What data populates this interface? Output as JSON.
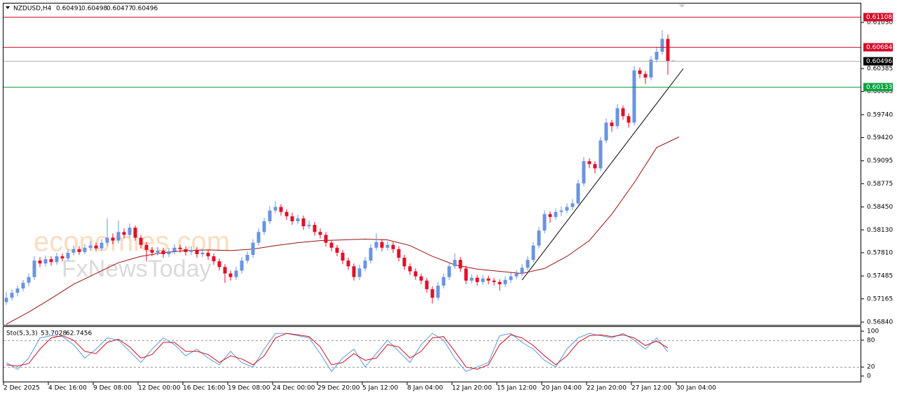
{
  "chart_data": {
    "type": "candlestick",
    "symbol": "NZDUSD,H4",
    "colors": {
      "up": "#6a94e0",
      "down": "#e01028"
    },
    "ohlc": [
      [
        0.5712,
        0.5726,
        0.5708,
        0.5718
      ],
      [
        0.5718,
        0.573,
        0.5714,
        0.5725
      ],
      [
        0.5725,
        0.5735,
        0.572,
        0.5731
      ],
      [
        0.5731,
        0.5743,
        0.5727,
        0.5739
      ],
      [
        0.5739,
        0.5752,
        0.5734,
        0.5747
      ],
      [
        0.5747,
        0.5776,
        0.5743,
        0.577
      ],
      [
        0.577,
        0.5775,
        0.5761,
        0.5766
      ],
      [
        0.5766,
        0.5777,
        0.5762,
        0.5772
      ],
      [
        0.5772,
        0.5776,
        0.5763,
        0.5768
      ],
      [
        0.5768,
        0.5781,
        0.5764,
        0.5776
      ],
      [
        0.5776,
        0.578,
        0.5769,
        0.5773
      ],
      [
        0.5773,
        0.5786,
        0.577,
        0.5781
      ],
      [
        0.5781,
        0.5791,
        0.5777,
        0.5786
      ],
      [
        0.5786,
        0.579,
        0.5778,
        0.5782
      ],
      [
        0.5782,
        0.5793,
        0.5779,
        0.5788
      ],
      [
        0.5788,
        0.5797,
        0.5784,
        0.5791
      ],
      [
        0.5791,
        0.5795,
        0.5783,
        0.5787
      ],
      [
        0.5787,
        0.58,
        0.5784,
        0.5795
      ],
      [
        0.5795,
        0.5829,
        0.5791,
        0.5802
      ],
      [
        0.5802,
        0.5808,
        0.5793,
        0.5798
      ],
      [
        0.5798,
        0.5826,
        0.5794,
        0.581
      ],
      [
        0.581,
        0.5815,
        0.5801,
        0.5806
      ],
      [
        0.5806,
        0.5822,
        0.5802,
        0.5816
      ],
      [
        0.5816,
        0.5819,
        0.5798,
        0.5802
      ],
      [
        0.5802,
        0.5806,
        0.5787,
        0.5792
      ],
      [
        0.5792,
        0.5796,
        0.5769,
        0.5785
      ],
      [
        0.5785,
        0.5789,
        0.5776,
        0.5781
      ],
      [
        0.5781,
        0.5789,
        0.5777,
        0.5784
      ],
      [
        0.5784,
        0.5788,
        0.5774,
        0.5779
      ],
      [
        0.5779,
        0.5788,
        0.5775,
        0.5783
      ],
      [
        0.5783,
        0.5793,
        0.5779,
        0.5788
      ],
      [
        0.5788,
        0.5792,
        0.5781,
        0.5786
      ],
      [
        0.5786,
        0.579,
        0.5777,
        0.5782
      ],
      [
        0.5782,
        0.579,
        0.5778,
        0.5785
      ],
      [
        0.5785,
        0.5789,
        0.5774,
        0.5779
      ],
      [
        0.5779,
        0.5786,
        0.5775,
        0.5781
      ],
      [
        0.5781,
        0.5785,
        0.5771,
        0.5776
      ],
      [
        0.5776,
        0.578,
        0.5764,
        0.5769
      ],
      [
        0.5769,
        0.5773,
        0.5756,
        0.5761
      ],
      [
        0.5761,
        0.5765,
        0.5739,
        0.5752
      ],
      [
        0.5752,
        0.5756,
        0.5742,
        0.5747
      ],
      [
        0.5747,
        0.5761,
        0.5743,
        0.5756
      ],
      [
        0.5756,
        0.5775,
        0.5752,
        0.577
      ],
      [
        0.577,
        0.5783,
        0.5766,
        0.5778
      ],
      [
        0.5778,
        0.58,
        0.5774,
        0.5795
      ],
      [
        0.5795,
        0.5815,
        0.5791,
        0.581
      ],
      [
        0.581,
        0.583,
        0.5806,
        0.5825
      ],
      [
        0.5825,
        0.5846,
        0.5821,
        0.584
      ],
      [
        0.584,
        0.5853,
        0.5836,
        0.5845
      ],
      [
        0.5845,
        0.5849,
        0.5833,
        0.5838
      ],
      [
        0.5838,
        0.5842,
        0.5827,
        0.5832
      ],
      [
        0.5832,
        0.5837,
        0.582,
        0.5825
      ],
      [
        0.5825,
        0.5834,
        0.5821,
        0.5829
      ],
      [
        0.5829,
        0.5833,
        0.5813,
        0.5818
      ],
      [
        0.5818,
        0.5826,
        0.5814,
        0.582
      ],
      [
        0.582,
        0.5824,
        0.5805,
        0.581
      ],
      [
        0.581,
        0.5815,
        0.5801,
        0.5806
      ],
      [
        0.5806,
        0.581,
        0.579,
        0.5795
      ],
      [
        0.5795,
        0.5799,
        0.5783,
        0.5788
      ],
      [
        0.5788,
        0.5792,
        0.5776,
        0.5781
      ],
      [
        0.5781,
        0.5785,
        0.5765,
        0.577
      ],
      [
        0.577,
        0.5774,
        0.5757,
        0.5762
      ],
      [
        0.5762,
        0.5766,
        0.5742,
        0.5747
      ],
      [
        0.5747,
        0.5764,
        0.5743,
        0.5759
      ],
      [
        0.5759,
        0.5775,
        0.5755,
        0.577
      ],
      [
        0.577,
        0.5793,
        0.5766,
        0.5788
      ],
      [
        0.5788,
        0.5808,
        0.5784,
        0.5796
      ],
      [
        0.5796,
        0.58,
        0.5783,
        0.5788
      ],
      [
        0.5788,
        0.5797,
        0.5784,
        0.5792
      ],
      [
        0.5792,
        0.5796,
        0.5781,
        0.5786
      ],
      [
        0.5786,
        0.579,
        0.5769,
        0.5774
      ],
      [
        0.5774,
        0.5778,
        0.5757,
        0.5762
      ],
      [
        0.5762,
        0.5766,
        0.575,
        0.5755
      ],
      [
        0.5755,
        0.5759,
        0.5743,
        0.5748
      ],
      [
        0.5748,
        0.5752,
        0.5737,
        0.5742
      ],
      [
        0.5742,
        0.5746,
        0.5725,
        0.573
      ],
      [
        0.573,
        0.5734,
        0.571,
        0.5718
      ],
      [
        0.5718,
        0.574,
        0.5714,
        0.5735
      ],
      [
        0.5735,
        0.5752,
        0.5731,
        0.5747
      ],
      [
        0.5747,
        0.5767,
        0.5743,
        0.5762
      ],
      [
        0.5762,
        0.578,
        0.5758,
        0.5771
      ],
      [
        0.5771,
        0.5775,
        0.5754,
        0.5759
      ],
      [
        0.5759,
        0.5763,
        0.5737,
        0.5742
      ],
      [
        0.5742,
        0.5751,
        0.5738,
        0.5746
      ],
      [
        0.5746,
        0.575,
        0.5735,
        0.574
      ],
      [
        0.574,
        0.575,
        0.5736,
        0.5745
      ],
      [
        0.5745,
        0.5749,
        0.5737,
        0.5742
      ],
      [
        0.5742,
        0.5746,
        0.5735,
        0.574
      ],
      [
        0.574,
        0.5744,
        0.5728,
        0.5737
      ],
      [
        0.5737,
        0.5748,
        0.5733,
        0.5743
      ],
      [
        0.5743,
        0.5753,
        0.5739,
        0.5748
      ],
      [
        0.5748,
        0.5757,
        0.5744,
        0.5752
      ],
      [
        0.5752,
        0.5765,
        0.5748,
        0.576
      ],
      [
        0.576,
        0.5776,
        0.5756,
        0.5771
      ],
      [
        0.5771,
        0.5796,
        0.5767,
        0.5791
      ],
      [
        0.5791,
        0.5817,
        0.5787,
        0.5812
      ],
      [
        0.5812,
        0.584,
        0.5808,
        0.5835
      ],
      [
        0.5835,
        0.5839,
        0.5823,
        0.5831
      ],
      [
        0.5831,
        0.5843,
        0.5827,
        0.5838
      ],
      [
        0.5838,
        0.5846,
        0.5832,
        0.584
      ],
      [
        0.584,
        0.585,
        0.5836,
        0.5845
      ],
      [
        0.5845,
        0.5856,
        0.5841,
        0.585
      ],
      [
        0.585,
        0.5883,
        0.5846,
        0.5878
      ],
      [
        0.5878,
        0.5915,
        0.5874,
        0.5909
      ],
      [
        0.5909,
        0.5913,
        0.5899,
        0.5905
      ],
      [
        0.5905,
        0.5909,
        0.5892,
        0.5899
      ],
      [
        0.5899,
        0.5943,
        0.5895,
        0.5938
      ],
      [
        0.5938,
        0.5969,
        0.5934,
        0.5963
      ],
      [
        0.5963,
        0.5967,
        0.595,
        0.5958
      ],
      [
        0.5958,
        0.5989,
        0.5954,
        0.5983
      ],
      [
        0.5983,
        0.5987,
        0.5967,
        0.5972
      ],
      [
        0.5972,
        0.5976,
        0.5956,
        0.5963
      ],
      [
        0.5963,
        0.6042,
        0.5959,
        0.6036
      ],
      [
        0.6036,
        0.604,
        0.6025,
        0.6031
      ],
      [
        0.6031,
        0.6035,
        0.6017,
        0.6026
      ],
      [
        0.6026,
        0.6056,
        0.6022,
        0.6051
      ],
      [
        0.6051,
        0.6068,
        0.6047,
        0.6062
      ],
      [
        0.6062,
        0.6092,
        0.6058,
        0.608
      ],
      [
        0.608,
        0.6086,
        0.603,
        0.60491
      ],
      [
        0.60491,
        0.60498,
        0.60477,
        0.60496
      ]
    ],
    "ylim": [
      0.56801,
      0.61295
    ],
    "yticks": [
      {
        "value": 0.6103,
        "label": "0.61030"
      },
      0.60385,
      0.60065,
      {
        "value": 0.5974,
        "label": "0.59740"
      },
      {
        "value": 0.5942,
        "label": "0.59420"
      },
      0.59095,
      0.58775,
      {
        "value": 0.5845,
        "label": "0.58450"
      },
      {
        "value": 0.5813,
        "label": "0.58130"
      },
      {
        "value": 0.5781,
        "label": "0.57810"
      },
      0.57485,
      0.57165,
      {
        "value": 0.5684,
        "label": "0.56840"
      }
    ],
    "levels": [
      {
        "value": 0.61108,
        "color": "#d0102a"
      },
      {
        "value": 0.60684,
        "color": "#d0102a"
      },
      {
        "value": 0.60496,
        "color": "#000000"
      },
      {
        "value": 0.60133,
        "color": "#10a040"
      }
    ],
    "ma": {
      "color": "#9a1010",
      "values": [
        0.5681,
        0.5698,
        0.5717,
        0.5737,
        0.5752,
        0.5767,
        0.5776,
        0.5781,
        0.5784,
        0.5785,
        0.5784,
        0.5786,
        0.5791,
        0.5795,
        0.5798,
        0.5799,
        0.58,
        0.5799,
        0.5791,
        0.5776,
        0.5764,
        0.5758,
        0.5755,
        0.5752,
        0.5759,
        0.5776,
        0.5798,
        0.5835,
        0.5879,
        0.5928,
        0.5943
      ]
    },
    "x_labels": [
      "2 Dec 2025",
      "4 Dec 16:00",
      "9 Dec 08:00",
      "12 Dec 00:00",
      "16 Dec 16:00",
      "19 Dec 08:00",
      "24 Dec 00:00",
      "29 Dec 20:00",
      "5 Jan 12:00",
      "8 Jan 04:00",
      "12 Jan 20:00",
      "15 Jan 12:00",
      "20 Jan 04:00",
      "22 Jan 20:00",
      "27 Jan 12:00",
      "30 Jan 04:00"
    ],
    "indicator": {
      "label": "Sto(5,3,3)",
      "ylim": [
        -12.5,
        109.4
      ],
      "yticks": [
        100,
        80,
        20,
        0
      ],
      "levels": [
        80,
        20
      ],
      "series": [
        {
          "color": "#5b9be0",
          "values": [
            30,
            15,
            40,
            85,
            90,
            88,
            70,
            40,
            60,
            85,
            80,
            55,
            30,
            60,
            85,
            70,
            45,
            60,
            40,
            25,
            55,
            30,
            20,
            60,
            95,
            95,
            90,
            85,
            50,
            10,
            40,
            60,
            20,
            50,
            80,
            55,
            30,
            70,
            95,
            80,
            40,
            10,
            20,
            30,
            90,
            95,
            75,
            60,
            35,
            20,
            60,
            85,
            95,
            90,
            85,
            95,
            80,
            60,
            85,
            53.7028
          ]
        },
        {
          "color": "#d01020",
          "values": [
            25,
            22,
            28,
            60,
            85,
            90,
            80,
            55,
            50,
            75,
            82,
            65,
            40,
            48,
            75,
            75,
            55,
            55,
            48,
            30,
            45,
            38,
            25,
            45,
            85,
            95,
            92,
            88,
            65,
            25,
            30,
            50,
            35,
            40,
            70,
            65,
            40,
            55,
            85,
            88,
            55,
            20,
            15,
            25,
            70,
            92,
            85,
            68,
            45,
            25,
            45,
            75,
            90,
            92,
            88,
            92,
            85,
            68,
            78,
            62.7456
          ]
        }
      ]
    },
    "watermark": [
      "economies.com",
      "FxNewsToday"
    ]
  }
}
